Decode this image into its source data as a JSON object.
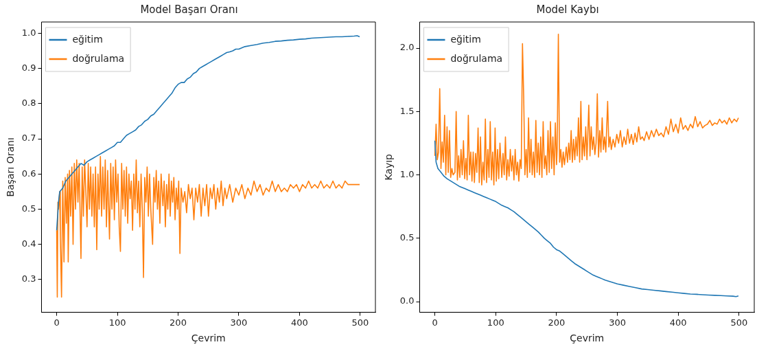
{
  "chart_data": [
    {
      "type": "line",
      "title": "Model Başarı Oranı",
      "xlabel": "Çevrim",
      "ylabel": "Başarı Oranı",
      "xlim": [
        -25,
        525
      ],
      "xticks": [
        0,
        100,
        200,
        300,
        400,
        500
      ],
      "ylim": [
        0.207,
        1.032
      ],
      "yticks": [
        0.3,
        0.4,
        0.5,
        0.6,
        0.7,
        0.8,
        0.9,
        {
          "value": 1,
          "label": "1.0"
        }
      ],
      "grid": false,
      "legend": "top left",
      "marker": "none",
      "line_style": "solid",
      "series": [
        {
          "name": "eğitim",
          "color": "#1f77b4",
          "x": [
            0,
            3,
            5,
            10,
            15,
            20,
            25,
            30,
            35,
            40,
            45,
            50,
            55,
            60,
            65,
            70,
            75,
            80,
            85,
            90,
            95,
            100,
            105,
            110,
            115,
            120,
            125,
            130,
            135,
            140,
            145,
            150,
            155,
            160,
            165,
            170,
            175,
            180,
            185,
            190,
            195,
            200,
            205,
            210,
            215,
            220,
            225,
            230,
            235,
            240,
            245,
            250,
            255,
            260,
            265,
            270,
            275,
            280,
            285,
            290,
            295,
            300,
            310,
            320,
            330,
            340,
            350,
            360,
            370,
            380,
            390,
            400,
            410,
            420,
            430,
            440,
            450,
            460,
            470,
            480,
            490,
            495,
            499
          ],
          "values": [
            0.44,
            0.52,
            0.55,
            0.56,
            0.58,
            0.59,
            0.6,
            0.61,
            0.62,
            0.63,
            0.625,
            0.635,
            0.64,
            0.645,
            0.65,
            0.655,
            0.66,
            0.665,
            0.67,
            0.675,
            0.68,
            0.69,
            0.69,
            0.7,
            0.71,
            0.715,
            0.72,
            0.725,
            0.735,
            0.74,
            0.75,
            0.755,
            0.765,
            0.77,
            0.78,
            0.79,
            0.8,
            0.81,
            0.82,
            0.83,
            0.845,
            0.855,
            0.86,
            0.86,
            0.87,
            0.875,
            0.885,
            0.89,
            0.9,
            0.905,
            0.91,
            0.915,
            0.92,
            0.925,
            0.93,
            0.935,
            0.94,
            0.945,
            0.947,
            0.95,
            0.955,
            0.955,
            0.962,
            0.965,
            0.968,
            0.972,
            0.974,
            0.977,
            0.978,
            0.98,
            0.981,
            0.983,
            0.984,
            0.986,
            0.987,
            0.988,
            0.989,
            0.99,
            0.99,
            0.991,
            0.992,
            0.993,
            0.99
          ]
        },
        {
          "name": "doğrulama",
          "color": "#ff7f0e",
          "x": [
            0,
            1,
            2,
            3,
            5,
            6,
            8,
            10,
            12,
            14,
            16,
            18,
            19,
            21,
            23,
            25,
            27,
            29,
            31,
            33,
            35,
            37,
            40,
            42,
            44,
            46,
            48,
            50,
            52,
            54,
            56,
            58,
            60,
            62,
            64,
            66,
            68,
            70,
            72,
            74,
            76,
            78,
            80,
            82,
            84,
            87,
            89,
            91,
            93,
            95,
            97,
            99,
            101,
            103,
            105,
            107,
            109,
            111,
            113,
            115,
            117,
            119,
            121,
            123,
            125,
            127,
            129,
            131,
            133,
            135,
            137,
            139,
            141,
            143,
            145,
            147,
            149,
            151,
            153,
            155,
            158,
            160,
            162,
            164,
            166,
            168,
            170,
            172,
            175,
            177,
            179,
            181,
            183,
            185,
            187,
            189,
            191,
            193,
            195,
            197,
            199,
            201,
            203,
            205,
            208,
            211,
            214,
            217,
            220,
            223,
            226,
            229,
            232,
            235,
            238,
            241,
            244,
            247,
            250,
            253,
            256,
            259,
            262,
            265,
            268,
            271,
            274,
            277,
            280,
            285,
            290,
            295,
            300,
            305,
            310,
            315,
            320,
            325,
            330,
            335,
            340,
            345,
            350,
            355,
            360,
            365,
            370,
            375,
            380,
            385,
            390,
            395,
            400,
            405,
            410,
            415,
            420,
            425,
            430,
            435,
            440,
            445,
            450,
            455,
            460,
            465,
            470,
            475,
            480,
            485,
            490,
            495,
            499
          ],
          "values": [
            0.44,
            0.25,
            0.52,
            0.5,
            0.55,
            0.42,
            0.25,
            0.58,
            0.35,
            0.59,
            0.46,
            0.6,
            0.35,
            0.61,
            0.48,
            0.62,
            0.4,
            0.63,
            0.5,
            0.64,
            0.52,
            0.63,
            0.36,
            0.62,
            0.48,
            0.64,
            0.55,
            0.45,
            0.63,
            0.5,
            0.62,
            0.48,
            0.6,
            0.45,
            0.62,
            0.385,
            0.6,
            0.5,
            0.65,
            0.48,
            0.62,
            0.5,
            0.64,
            0.45,
            0.61,
            0.415,
            0.63,
            0.5,
            0.62,
            0.47,
            0.64,
            0.52,
            0.6,
            0.45,
            0.38,
            0.63,
            0.5,
            0.61,
            0.48,
            0.62,
            0.46,
            0.6,
            0.53,
            0.58,
            0.44,
            0.6,
            0.5,
            0.64,
            0.49,
            0.58,
            0.45,
            0.6,
            0.5,
            0.306,
            0.59,
            0.52,
            0.62,
            0.48,
            0.6,
            0.5,
            0.4,
            0.59,
            0.52,
            0.61,
            0.5,
            0.58,
            0.46,
            0.6,
            0.51,
            0.58,
            0.45,
            0.57,
            0.5,
            0.6,
            0.48,
            0.58,
            0.52,
            0.59,
            0.47,
            0.56,
            0.5,
            0.58,
            0.374,
            0.56,
            0.52,
            0.55,
            0.49,
            0.57,
            0.53,
            0.56,
            0.47,
            0.56,
            0.52,
            0.57,
            0.48,
            0.56,
            0.51,
            0.57,
            0.48,
            0.56,
            0.53,
            0.57,
            0.5,
            0.56,
            0.52,
            0.58,
            0.51,
            0.56,
            0.53,
            0.57,
            0.52,
            0.56,
            0.54,
            0.57,
            0.53,
            0.56,
            0.54,
            0.58,
            0.55,
            0.57,
            0.54,
            0.56,
            0.55,
            0.58,
            0.55,
            0.57,
            0.55,
            0.56,
            0.55,
            0.57,
            0.56,
            0.57,
            0.55,
            0.57,
            0.56,
            0.58,
            0.56,
            0.57,
            0.56,
            0.58,
            0.56,
            0.57,
            0.56,
            0.58,
            0.56,
            0.57,
            0.56,
            0.58,
            0.57,
            0.57,
            0.57,
            0.57,
            0.57
          ]
        }
      ]
    },
    {
      "type": "line",
      "title": "Model Kaybı",
      "xlabel": "Çevrim",
      "ylabel": "Kayıp",
      "xlim": [
        -25,
        525
      ],
      "xticks": [
        0,
        100,
        200,
        300,
        400,
        500
      ],
      "ylim": [
        -0.084,
        2.206
      ],
      "yticks": [
        {
          "value": 0,
          "label": "0.0"
        },
        0.5,
        {
          "value": 1,
          "label": "1.0"
        },
        1.5,
        {
          "value": 2,
          "label": "2.0"
        }
      ],
      "grid": false,
      "legend": "top left",
      "marker": "none",
      "line_style": "solid",
      "series": [
        {
          "name": "eğitim",
          "color": "#1f77b4",
          "x": [
            0,
            2,
            5,
            10,
            15,
            20,
            25,
            30,
            35,
            40,
            45,
            50,
            55,
            60,
            65,
            70,
            75,
            80,
            85,
            90,
            95,
            100,
            105,
            110,
            115,
            120,
            125,
            130,
            135,
            140,
            145,
            150,
            155,
            160,
            165,
            170,
            175,
            180,
            185,
            190,
            195,
            200,
            205,
            210,
            215,
            220,
            225,
            230,
            235,
            240,
            245,
            250,
            255,
            260,
            265,
            270,
            275,
            280,
            290,
            300,
            310,
            320,
            330,
            340,
            350,
            360,
            370,
            380,
            390,
            400,
            410,
            420,
            430,
            440,
            450,
            460,
            470,
            480,
            490,
            495,
            499
          ],
          "values": [
            1.27,
            1.1,
            1.05,
            1.02,
            0.99,
            0.97,
            0.955,
            0.94,
            0.925,
            0.91,
            0.9,
            0.89,
            0.88,
            0.87,
            0.86,
            0.85,
            0.84,
            0.83,
            0.82,
            0.81,
            0.8,
            0.79,
            0.775,
            0.76,
            0.75,
            0.74,
            0.725,
            0.71,
            0.69,
            0.67,
            0.65,
            0.63,
            0.61,
            0.59,
            0.57,
            0.55,
            0.525,
            0.5,
            0.48,
            0.46,
            0.43,
            0.41,
            0.4,
            0.38,
            0.36,
            0.34,
            0.32,
            0.3,
            0.285,
            0.27,
            0.255,
            0.24,
            0.225,
            0.21,
            0.2,
            0.19,
            0.18,
            0.17,
            0.155,
            0.14,
            0.13,
            0.12,
            0.11,
            0.1,
            0.095,
            0.09,
            0.085,
            0.08,
            0.075,
            0.07,
            0.065,
            0.06,
            0.058,
            0.055,
            0.052,
            0.05,
            0.048,
            0.045,
            0.043,
            0.04,
            0.045
          ]
        },
        {
          "name": "doğrulama",
          "color": "#ff7f0e",
          "x": [
            0,
            2,
            4,
            6,
            8,
            10,
            12,
            14,
            16,
            18,
            20,
            22,
            24,
            26,
            28,
            30,
            33,
            35,
            37,
            39,
            41,
            43,
            45,
            47,
            49,
            51,
            53,
            55,
            57,
            59,
            61,
            63,
            65,
            67,
            69,
            71,
            73,
            75,
            77,
            79,
            81,
            83,
            85,
            87,
            89,
            91,
            93,
            95,
            97,
            99,
            101,
            103,
            105,
            107,
            110,
            112,
            114,
            116,
            118,
            120,
            122,
            124,
            126,
            128,
            130,
            132,
            134,
            136,
            138,
            140,
            142,
            144,
            146,
            148,
            150,
            152,
            154,
            156,
            158,
            160,
            162,
            164,
            166,
            168,
            170,
            172,
            174,
            176,
            178,
            180,
            182,
            184,
            186,
            188,
            190,
            192,
            194,
            196,
            198,
            200,
            201,
            203,
            205,
            207,
            209,
            211,
            213,
            216,
            218,
            220,
            222,
            224,
            226,
            228,
            230,
            232,
            234,
            236,
            238,
            240,
            242,
            244,
            246,
            248,
            250,
            253,
            255,
            257,
            259,
            261,
            263,
            265,
            267,
            269,
            271,
            273,
            275,
            277,
            279,
            281,
            284,
            286,
            288,
            290,
            293,
            296,
            299,
            302,
            305,
            308,
            311,
            314,
            317,
            320,
            323,
            326,
            329,
            332,
            335,
            338,
            341,
            344,
            348,
            352,
            356,
            360,
            364,
            368,
            372,
            376,
            380,
            384,
            388,
            392,
            396,
            400,
            404,
            408,
            412,
            416,
            420,
            424,
            428,
            432,
            436,
            440,
            444,
            448,
            452,
            456,
            460,
            464,
            468,
            472,
            476,
            480,
            484,
            488,
            492,
            496,
            499
          ],
          "values": [
            1.15,
            1.4,
            1.12,
            1.18,
            1.68,
            1.05,
            1.26,
            1.1,
            1.47,
            1.0,
            1.38,
            1.02,
            1.35,
            0.98,
            1.05,
            1.0,
            1.02,
            1.5,
            0.96,
            1.15,
            0.98,
            1.2,
            1.0,
            1.27,
            0.97,
            1.13,
            0.96,
            1.47,
            1.0,
            1.18,
            0.95,
            1.18,
            0.94,
            1.17,
            1.02,
            1.37,
            0.94,
            1.3,
            0.92,
            1.1,
            0.96,
            1.44,
            0.94,
            1.2,
            0.98,
            1.42,
            0.96,
            1.18,
            0.92,
            1.37,
            0.95,
            1.2,
            0.97,
            1.25,
            0.98,
            1.17,
            1.0,
            1.3,
            0.96,
            1.12,
            0.99,
            1.2,
            1.03,
            1.15,
            0.96,
            1.2,
            1.0,
            1.1,
            0.95,
            1.12,
            1.05,
            2.035,
            1.62,
            1.0,
            1.2,
            0.98,
            1.45,
            1.02,
            1.28,
            1.0,
            1.18,
            0.98,
            1.43,
            1.02,
            1.25,
            1.0,
            1.3,
            0.98,
            1.42,
            1.05,
            1.15,
            1.0,
            1.35,
            1.02,
            1.42,
            1.05,
            1.3,
            1.0,
            1.41,
            1.08,
            1.2,
            2.11,
            1.1,
            1.2,
            1.06,
            1.18,
            1.08,
            1.22,
            1.1,
            1.25,
            1.12,
            1.35,
            1.1,
            1.28,
            1.12,
            1.3,
            1.15,
            1.45,
            1.1,
            1.58,
            1.12,
            1.3,
            1.15,
            1.38,
            1.12,
            1.55,
            1.15,
            1.38,
            1.2,
            1.3,
            1.16,
            1.25,
            1.64,
            1.14,
            1.35,
            1.18,
            1.45,
            1.2,
            1.3,
            1.18,
            1.58,
            1.22,
            1.3,
            1.2,
            1.28,
            1.22,
            1.32,
            1.25,
            1.35,
            1.22,
            1.3,
            1.24,
            1.36,
            1.25,
            1.32,
            1.24,
            1.33,
            1.26,
            1.38,
            1.28,
            1.3,
            1.27,
            1.34,
            1.28,
            1.35,
            1.3,
            1.36,
            1.31,
            1.33,
            1.3,
            1.38,
            1.32,
            1.44,
            1.34,
            1.4,
            1.33,
            1.45,
            1.36,
            1.39,
            1.35,
            1.4,
            1.37,
            1.46,
            1.38,
            1.42,
            1.37,
            1.39,
            1.4,
            1.43,
            1.39,
            1.41,
            1.4,
            1.44,
            1.41,
            1.43,
            1.4,
            1.45,
            1.41,
            1.44,
            1.42,
            1.45
          ]
        }
      ]
    }
  ]
}
